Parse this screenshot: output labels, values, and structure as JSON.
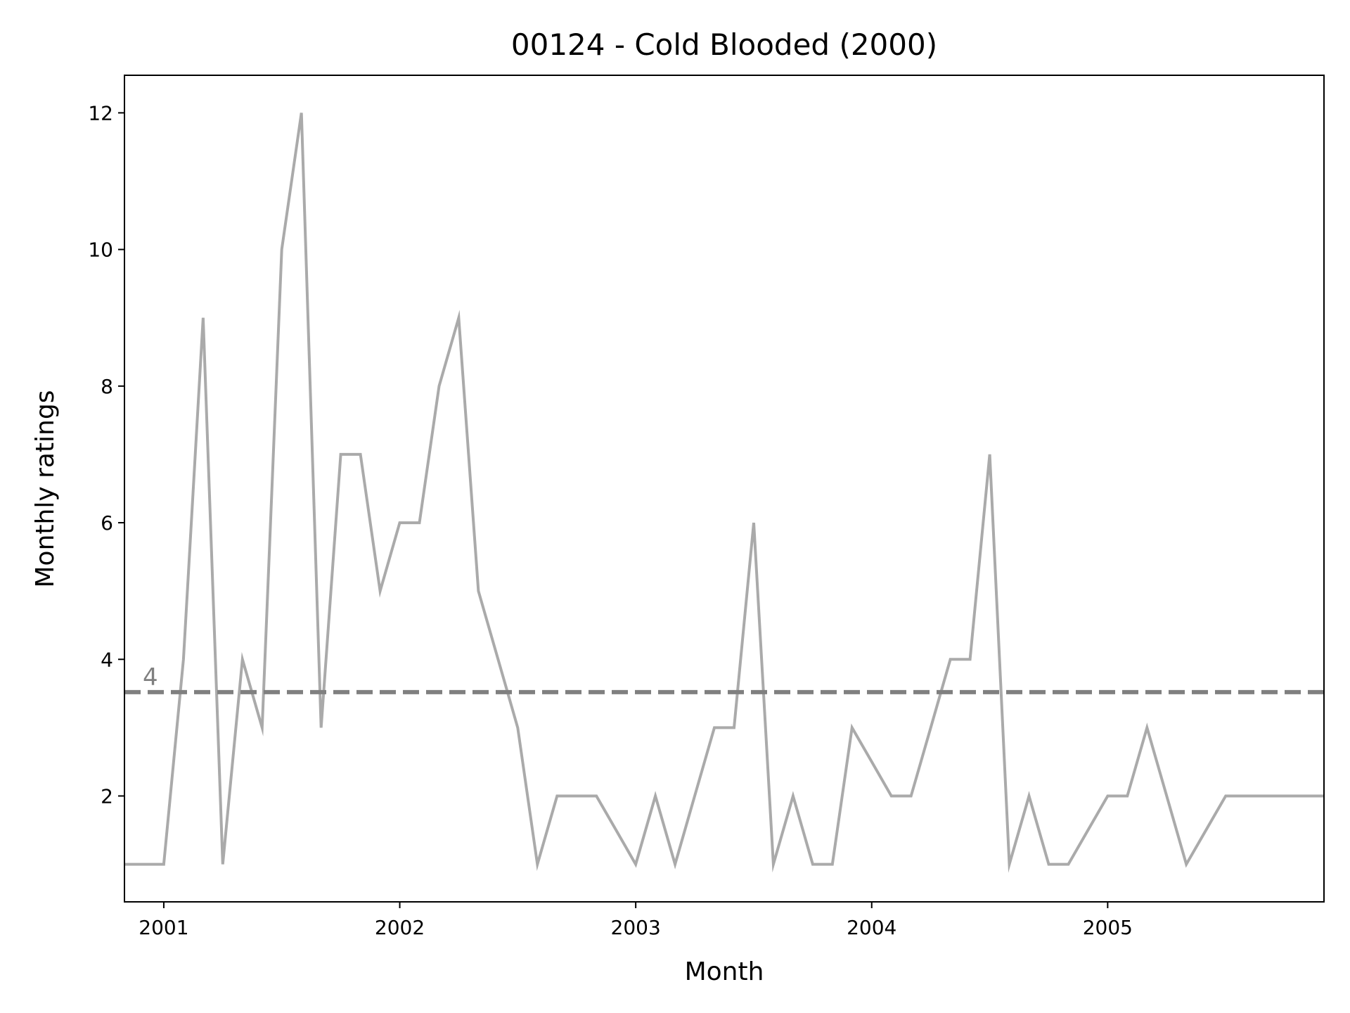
{
  "chart_data": {
    "type": "line",
    "title": "00124 - Cold Blooded (2000)",
    "xlabel": "Month",
    "ylabel": "Monthly ratings",
    "x_tick_labels": [
      "2001",
      "2002",
      "2003",
      "2004",
      "2005"
    ],
    "y_tick_labels": [
      "2",
      "4",
      "6",
      "8",
      "10",
      "12"
    ],
    "xlim": [
      "2000-11",
      "2005-12"
    ],
    "ylim": [
      0.45,
      12.55
    ],
    "grid": false,
    "series": [
      {
        "color": "#aaaaaa",
        "x": [
          "2000-11",
          "2000-12",
          "2001-01",
          "2001-02",
          "2001-03",
          "2001-04",
          "2001-05",
          "2001-06",
          "2001-07",
          "2001-08",
          "2001-09",
          "2001-10",
          "2001-11",
          "2001-12",
          "2002-01",
          "2002-02",
          "2002-03",
          "2002-04",
          "2002-05",
          "2002-06",
          "2002-07",
          "2002-08",
          "2002-09",
          "2002-10",
          "2002-11",
          "2002-12",
          "2003-01",
          "2003-02",
          "2003-03",
          "2003-04",
          "2003-05",
          "2003-06",
          "2003-07",
          "2003-08",
          "2003-09",
          "2003-10",
          "2003-11",
          "2003-12",
          "2004-01",
          "2004-02",
          "2004-03",
          "2004-04",
          "2004-05",
          "2004-06",
          "2004-07",
          "2004-08",
          "2004-09",
          "2004-10",
          "2004-11",
          "2004-12",
          "2005-01",
          "2005-02",
          "2005-03",
          "2005-04",
          "2005-05",
          "2005-06",
          "2005-07",
          "2005-08",
          "2005-09",
          "2005-10",
          "2005-11",
          "2005-12"
        ],
        "values": [
          1,
          1,
          1,
          4,
          9,
          1,
          4,
          3,
          10,
          12,
          3,
          7,
          7,
          5,
          6,
          6,
          8,
          9,
          5,
          4,
          3,
          1,
          2,
          2,
          2,
          1.5,
          1,
          2,
          1,
          2,
          3,
          3,
          6,
          1,
          2,
          1,
          1,
          3,
          2.5,
          2,
          2,
          3,
          4,
          4,
          7,
          1,
          2,
          1,
          1,
          1.5,
          2,
          2,
          3,
          2,
          1,
          1.5,
          2,
          2,
          2,
          2,
          2,
          2
        ]
      }
    ],
    "reference_line": {
      "value": 3.52,
      "label": "4",
      "style": "dashed",
      "color": "#808080"
    }
  }
}
